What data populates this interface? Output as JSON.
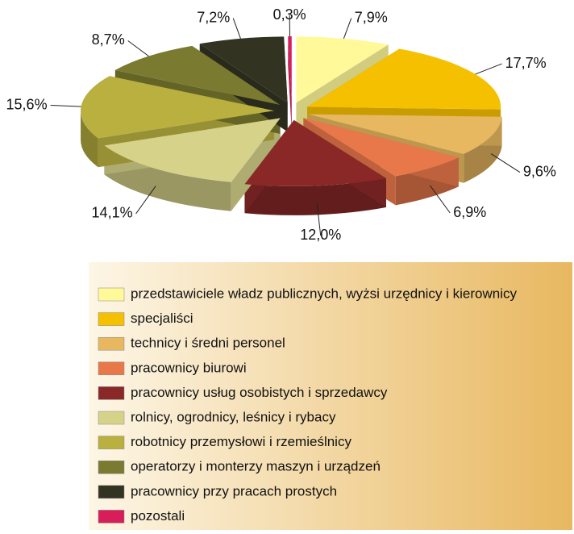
{
  "chart_data": {
    "type": "pie3d",
    "categories": [
      "przedstawiciele władz publicznych, wyżsi urzędnicy i kierownicy",
      "specjaliści",
      "technicy i średni personel",
      "pracownicy biurowi",
      "pracownicy usług osobistych i sprzedawcy",
      "rolnicy, ogrodnicy, leśnicy i rybacy",
      "robotnicy przemysłowi i rzemieślnicy",
      "operatorzy i monterzy maszyn i urządzeń",
      "pracownicy przy pracach prostych",
      "pozostali"
    ],
    "values": [
      7.9,
      17.7,
      9.6,
      6.9,
      12.0,
      14.1,
      15.6,
      8.7,
      7.2,
      0.3
    ],
    "value_labels": [
      "7,9%",
      "17,7%",
      "9,6%",
      "6,9%",
      "12,0%",
      "14,1%",
      "15,6%",
      "8,7%",
      "7,2%",
      "0,3%"
    ],
    "colors": [
      "#fff99a",
      "#f5c000",
      "#e8b860",
      "#e8784a",
      "#8a2828",
      "#d6d28a",
      "#b9b040",
      "#7a7a30",
      "#333322",
      "#d81e5a"
    ]
  }
}
